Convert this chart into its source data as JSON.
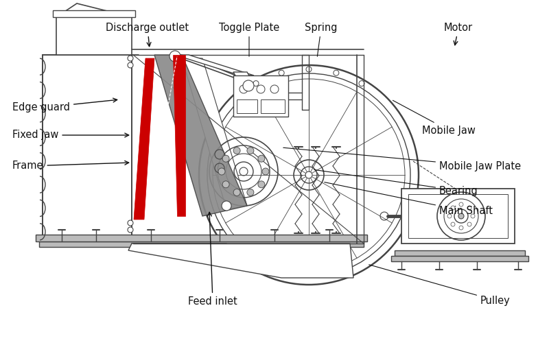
{
  "bg_color": "#ffffff",
  "lc": "#444444",
  "rc": "#cc0000",
  "gc": "#888888",
  "lgc": "#bbbbbb",
  "label_color": "#111111",
  "font_size": 10.5,
  "labels": {
    "feed_inlet": [
      "Feed inlet",
      310,
      72,
      310,
      195,
      "center",
      "top"
    ],
    "pulley": [
      "Pulley",
      690,
      68,
      535,
      115,
      "left",
      "center"
    ],
    "main_shaft": [
      "Main Shaft",
      630,
      195,
      480,
      235,
      "left",
      "center"
    ],
    "bearing": [
      "Bearing",
      630,
      225,
      460,
      255,
      "left",
      "center"
    ],
    "mobile_jaw_plate": [
      "Mobile Jaw Plate",
      630,
      260,
      410,
      290,
      "left",
      "center"
    ],
    "mobile_jaw": [
      "Mobile Jaw",
      610,
      315,
      560,
      350,
      "left",
      "center"
    ],
    "frame": [
      "Frame",
      55,
      255,
      195,
      263,
      "left",
      "center"
    ],
    "fixed_jaw": [
      "Fixed jaw",
      55,
      300,
      185,
      305,
      "left",
      "center"
    ],
    "edge_guard": [
      "Edge guard",
      55,
      340,
      163,
      355,
      "left",
      "center"
    ],
    "discharge_outlet": [
      "Discharge outlet",
      220,
      460,
      220,
      428,
      "center",
      "top"
    ],
    "toggle_plate": [
      "Toggle Plate",
      365,
      460,
      365,
      418,
      "center",
      "top"
    ],
    "spring": [
      "Spring",
      470,
      460,
      460,
      418,
      "center",
      "top"
    ],
    "motor": [
      "Motor",
      680,
      460,
      660,
      430,
      "center",
      "top"
    ]
  }
}
